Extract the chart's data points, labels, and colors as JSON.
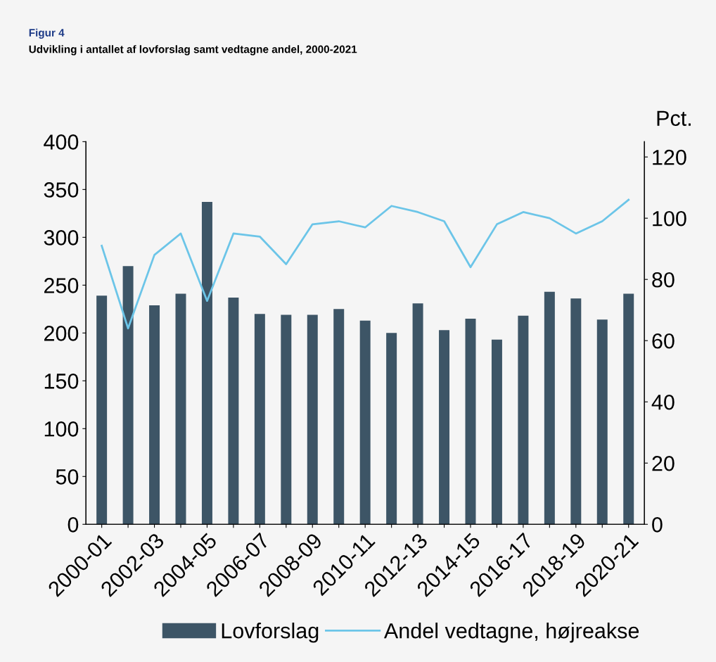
{
  "chart_data": {
    "type": "bar",
    "title": "Figur 4",
    "subtitle": "Udvikling i antallet af lovforslag samt vedtagne andel, 2000-2021",
    "categories": [
      "2000-01",
      null,
      "2002-03",
      null,
      "2004-05",
      null,
      "2006-07",
      null,
      "2008-09",
      null,
      "2010-11",
      null,
      "2012-13",
      null,
      "2014-15",
      null,
      "2016-17",
      null,
      "2018-19",
      null,
      "2020-21"
    ],
    "series": [
      {
        "name": "Lovforslag",
        "color": "#3d5566",
        "values": [
          239,
          270,
          229,
          241,
          337,
          237,
          220,
          219,
          219,
          225,
          213,
          200,
          231,
          203,
          215,
          193,
          218,
          243,
          236,
          214,
          241
        ]
      },
      {
        "name": "Andel vedtagne, højreakse",
        "type": "line",
        "axis": "y2",
        "color": "#6cc5e8",
        "values": [
          91,
          64,
          88,
          95,
          73,
          95,
          94,
          85,
          98,
          99,
          97,
          104,
          102,
          99,
          84,
          98,
          102,
          100,
          95,
          99,
          106
        ]
      }
    ],
    "ylim": [
      0,
      400
    ],
    "yticks": [
      0,
      50,
      100,
      150,
      200,
      250,
      300,
      350,
      400
    ],
    "y2label": "Pct.",
    "y2lim": [
      0,
      125
    ],
    "y2ticks": [
      0,
      20,
      40,
      60,
      80,
      100,
      120
    ],
    "legend": "bottom",
    "grid": false
  }
}
